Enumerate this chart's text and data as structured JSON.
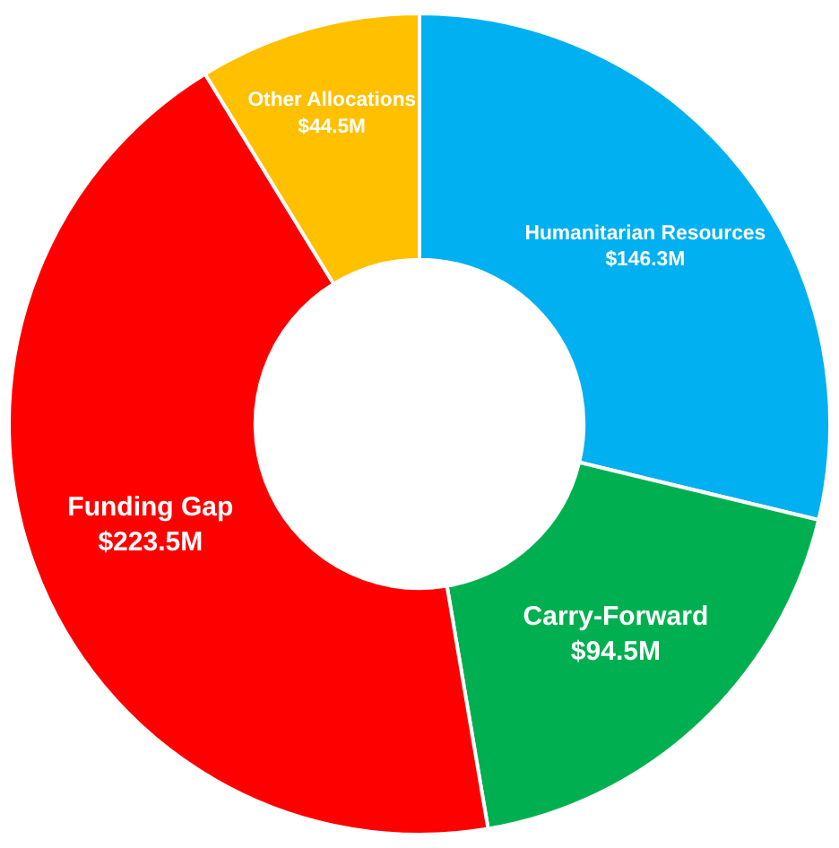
{
  "chart_data": {
    "type": "donut",
    "categories": [
      "Humanitarian Resources",
      "Carry-Forward",
      "Funding Gap",
      "Other Allocations"
    ],
    "values": [
      146.3,
      94.5,
      223.5,
      44.5
    ],
    "value_labels": [
      "$146.3M",
      "$94.5M",
      "$223.5M",
      "$44.5M"
    ],
    "colors": [
      "#00b0f0",
      "#00b050",
      "#ff0000",
      "#ffc000"
    ],
    "legend": false
  }
}
